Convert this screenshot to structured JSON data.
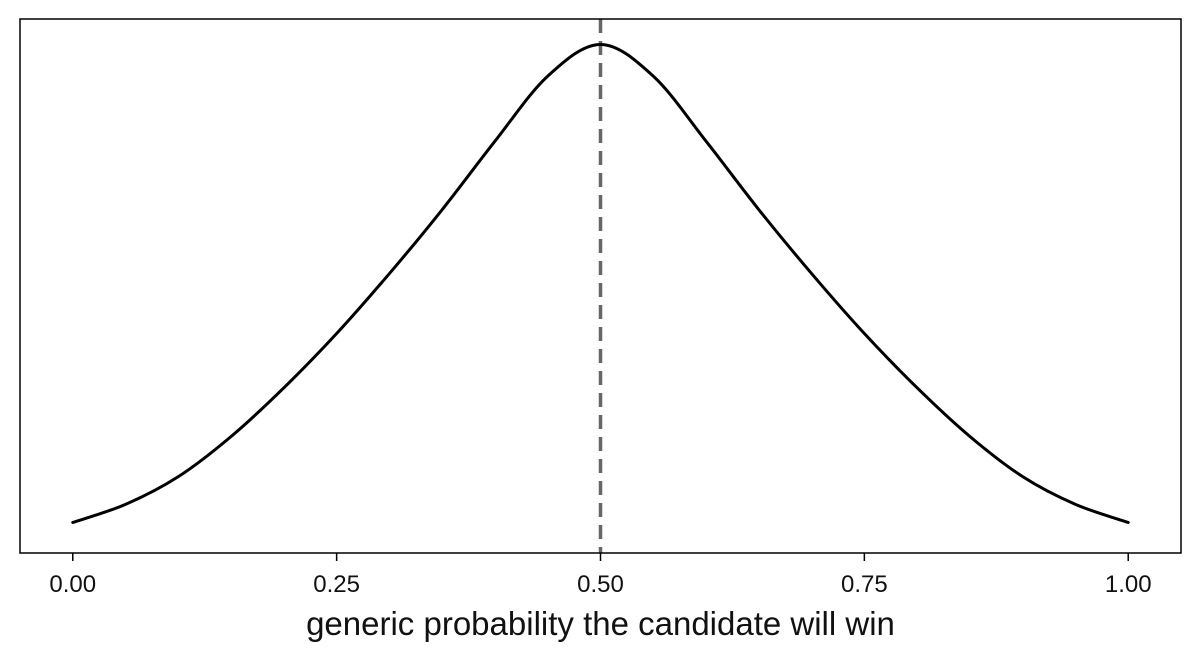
{
  "chart_data": {
    "type": "line",
    "title": "",
    "xlabel": "generic probability the candidate will win",
    "ylabel": "",
    "xlim": [
      -0.05,
      1.05
    ],
    "ylim": [
      0.081,
      1.025
    ],
    "x_ticks": [
      {
        "value": 0.0,
        "label": "0.00"
      },
      {
        "value": 0.25,
        "label": "0.25"
      },
      {
        "value": 0.5,
        "label": "0.50"
      },
      {
        "value": 0.75,
        "label": "0.75"
      },
      {
        "value": 1.0,
        "label": "1.00"
      }
    ],
    "y_ticks": [],
    "grid": false,
    "legend": "none",
    "series": [
      {
        "color": "#000000",
        "style": "solid",
        "x": [
          0.0,
          0.05,
          0.1,
          0.15,
          0.2,
          0.25,
          0.3,
          0.35,
          0.4,
          0.45,
          0.5,
          0.55,
          0.6,
          0.65,
          0.7,
          0.75,
          0.8,
          0.85,
          0.9,
          0.95,
          1.0
        ],
        "y": [
          0.135,
          0.167,
          0.216,
          0.287,
          0.373,
          0.469,
          0.575,
          0.688,
          0.809,
          0.924,
          0.98,
          0.924,
          0.809,
          0.688,
          0.575,
          0.469,
          0.373,
          0.287,
          0.216,
          0.167,
          0.135
        ]
      }
    ],
    "annotations": [
      {
        "type": "vline",
        "x": 0.5,
        "color": "#666666",
        "style": "dashed"
      }
    ]
  }
}
